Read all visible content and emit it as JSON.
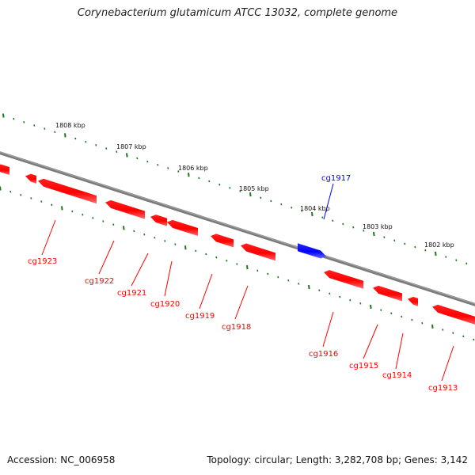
{
  "title": "Corynebacterium glutamicum ATCC 13032, complete genome",
  "footer": {
    "accession": "Accession: NC_006958",
    "summary": "Topology: circular; Length: 3,282,708 bp; Genes: 3,142"
  },
  "colors": {
    "backbone": "#808080",
    "ticks": "#1a7a1a",
    "reverse_gene": "#ff0000",
    "forward_gene": "#0000ff"
  },
  "kbp_labels": [
    "1808 kbp",
    "1807 kbp",
    "1806 kbp",
    "1805 kbp",
    "1804 kbp",
    "1803 kbp",
    "1802 kbp"
  ],
  "genes": [
    {
      "name": "cg1923",
      "strand": "reverse"
    },
    {
      "name": "cg1922",
      "strand": "reverse"
    },
    {
      "name": "cg1921",
      "strand": "reverse"
    },
    {
      "name": "cg1920",
      "strand": "reverse"
    },
    {
      "name": "cg1919",
      "strand": "reverse"
    },
    {
      "name": "cg1918",
      "strand": "reverse"
    },
    {
      "name": "cg1917",
      "strand": "forward"
    },
    {
      "name": "cg1916",
      "strand": "reverse"
    },
    {
      "name": "cg1915",
      "strand": "reverse"
    },
    {
      "name": "cg1914",
      "strand": "reverse"
    },
    {
      "name": "cg1913",
      "strand": "reverse"
    }
  ]
}
